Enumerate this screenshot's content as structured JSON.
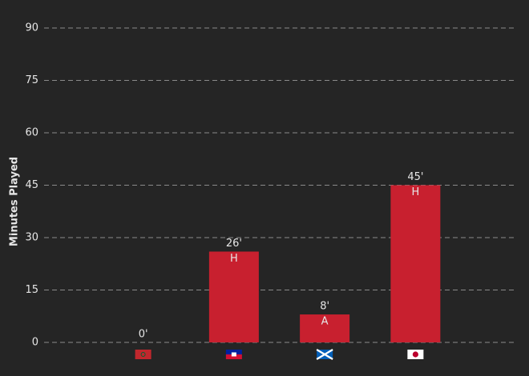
{
  "chart_data": {
    "type": "bar",
    "y_label": "Minutes Played",
    "categories": [
      null,
      null,
      null,
      null
    ],
    "values": [
      0,
      26,
      8,
      45
    ],
    "value_labels": [
      "0'",
      "26'",
      "8'",
      "45'"
    ],
    "bar_annotations": [
      null,
      "H",
      "A",
      "H"
    ],
    "color": "#c8202f",
    "ylim": [
      0,
      90
    ],
    "yticks": [
      0,
      15,
      30,
      45,
      60,
      75,
      90
    ],
    "grid": true
  }
}
